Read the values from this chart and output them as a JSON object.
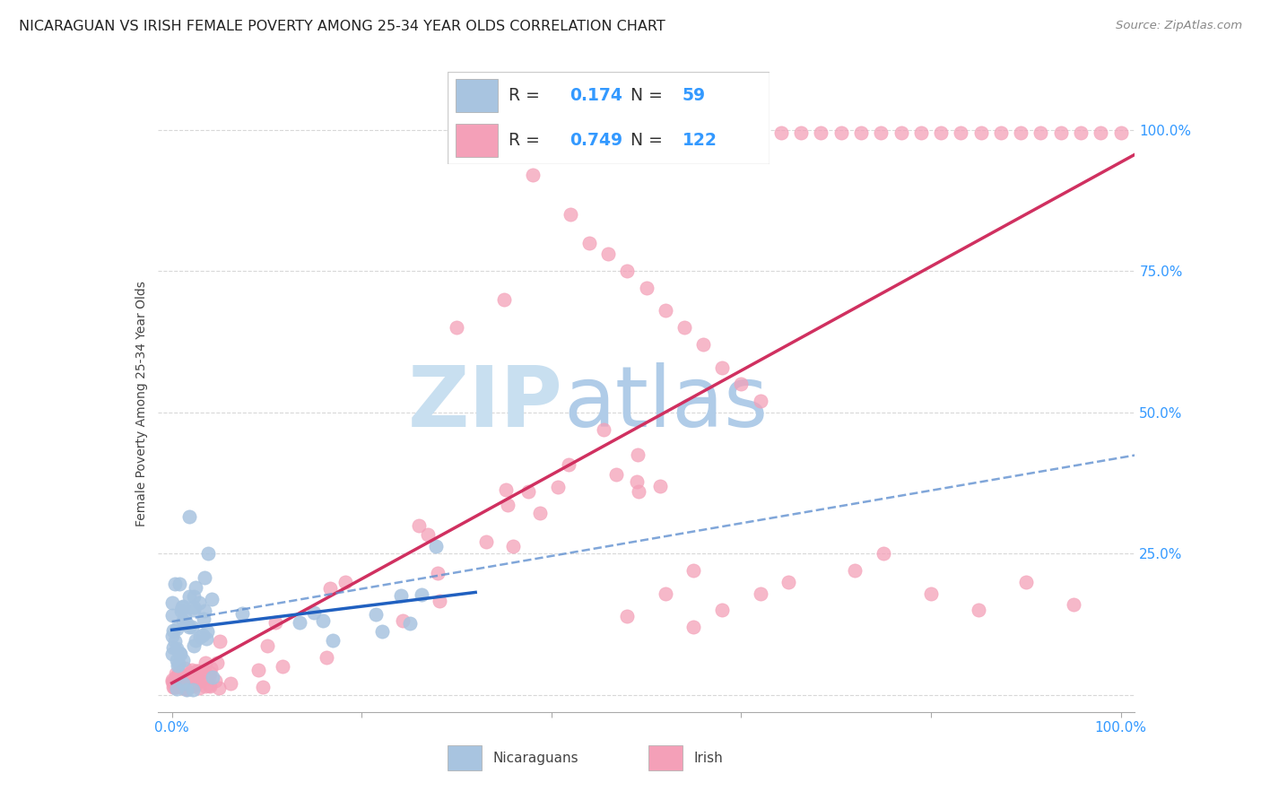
{
  "title": "NICARAGUAN VS IRISH FEMALE POVERTY AMONG 25-34 YEAR OLDS CORRELATION CHART",
  "source": "Source: ZipAtlas.com",
  "ylabel": "Female Poverty Among 25-34 Year Olds",
  "nicaraguan_R": 0.174,
  "nicaraguan_N": 59,
  "irish_R": 0.749,
  "irish_N": 122,
  "nicaraguan_color": "#a8c4e0",
  "nicaraguan_edge": "#7aafd4",
  "irish_color": "#f4a0b8",
  "irish_edge": "#e87090",
  "nicaraguan_line_color": "#2060c0",
  "irish_line_color": "#d03060",
  "dashed_line_color": "#6090d0",
  "watermark_zip_color": "#c8dff0",
  "watermark_atlas_color": "#b0cce8",
  "grid_color": "#d8d8d8",
  "spine_color": "#aaaaaa",
  "tick_color": "#3399ff",
  "ylabel_color": "#444444",
  "title_color": "#222222",
  "source_color": "#888888",
  "legend_text_color": "#333333",
  "legend_num_color": "#3399ff",
  "bottom_legend_color": "#444444"
}
